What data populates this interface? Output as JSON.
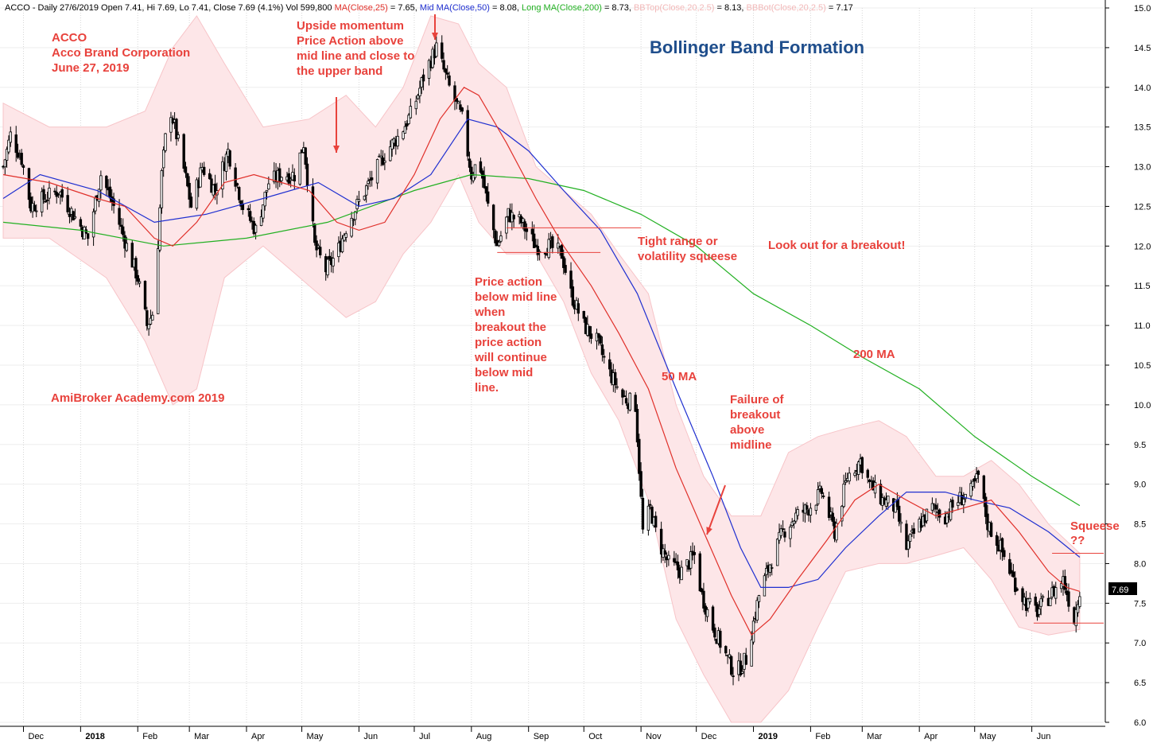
{
  "header": {
    "parts": [
      {
        "text": "ACCO - Daily 27/6/2019 Open 7.41, Hi 7.69, Lo 7.41, Close 7.69 (4.1%) Vol 599,800 ",
        "color": "#000000"
      },
      {
        "text": "MA(Close,25)",
        "color": "#e0302a"
      },
      {
        "text": " = 7.65, ",
        "color": "#000000"
      },
      {
        "text": "Mid MA(Close,50)",
        "color": "#1f2fd0"
      },
      {
        "text": " = 8.08, ",
        "color": "#000000"
      },
      {
        "text": "Long MA(Close,200)",
        "color": "#22b022"
      },
      {
        "text": " = 8.73, ",
        "color": "#000000"
      },
      {
        "text": "BBTop(Close,20,2.5)",
        "color": "#f2b8b8"
      },
      {
        "text": " = 8.13, ",
        "color": "#000000"
      },
      {
        "text": "BBBot(Close,20,2.5)",
        "color": "#f2b8b8"
      },
      {
        "text": " = 7.17",
        "color": "#000000"
      }
    ]
  },
  "title": "Bollinger Band Formation",
  "colors": {
    "ma25": "#e0302a",
    "ma50": "#1f2fd0",
    "ma200": "#22b022",
    "band_fill": "#fde6e8",
    "band_edge": "#f7c4c8",
    "annotation": "#e8423c",
    "title": "#1f4e8c",
    "candle": "#000000"
  },
  "annotations": {
    "acco": [
      "ACCO",
      "Acco Brand Corporation",
      "June 27, 2019"
    ],
    "momentum": [
      "Upside momentum",
      "Price Action above",
      "mid line and close to",
      "the upper band"
    ],
    "tight": [
      "Tight range or",
      "volatility squeese"
    ],
    "breakout": [
      "Look out for a breakout!"
    ],
    "below": [
      "Price action",
      "below mid line",
      "when",
      "breakout the",
      "price action",
      "will continue",
      "below mid",
      "line."
    ],
    "ma50": [
      "50 MA"
    ],
    "ma200": [
      "200 MA"
    ],
    "failure": [
      "Failure of",
      "breakout",
      "above",
      "midline"
    ],
    "squeese": [
      "Squeese",
      "??"
    ],
    "academy": [
      "AmiBroker Academy.com  2019"
    ]
  },
  "price_tag": "7.69",
  "chart_data": {
    "type": "candlestick",
    "period": "Daily",
    "y_axis": {
      "min": 6.0,
      "max": 15.0,
      "step": 0.5,
      "side": "right",
      "ticks": [
        "6.0",
        "6.5",
        "7.0",
        "7.5",
        "8.0",
        "8.5",
        "9.0",
        "9.5",
        "10.0",
        "10.5",
        "11.0",
        "11.5",
        "12.0",
        "12.5",
        "13.0",
        "13.5",
        "14.0",
        "14.5",
        "15.0"
      ]
    },
    "x_axis": {
      "labels": [
        {
          "label": "Dec",
          "date": "2017-12-01",
          "bold": false
        },
        {
          "label": "2018",
          "date": "2018-01-01",
          "bold": true
        },
        {
          "label": "Feb",
          "date": "2018-02-01",
          "bold": false
        },
        {
          "label": "Mar",
          "date": "2018-03-01",
          "bold": false
        },
        {
          "label": "Apr",
          "date": "2018-04-01",
          "bold": false
        },
        {
          "label": "May",
          "date": "2018-05-01",
          "bold": false
        },
        {
          "label": "Jun",
          "date": "2018-06-01",
          "bold": false
        },
        {
          "label": "Jul",
          "date": "2018-07-01",
          "bold": false
        },
        {
          "label": "Aug",
          "date": "2018-08-01",
          "bold": false
        },
        {
          "label": "Sep",
          "date": "2018-09-01",
          "bold": false
        },
        {
          "label": "Oct",
          "date": "2018-10-01",
          "bold": false
        },
        {
          "label": "Nov",
          "date": "2018-11-01",
          "bold": false
        },
        {
          "label": "Dec",
          "date": "2018-12-01",
          "bold": false
        },
        {
          "label": "2019",
          "date": "2019-01-01",
          "bold": true
        },
        {
          "label": "Feb",
          "date": "2019-02-01",
          "bold": false
        },
        {
          "label": "Mar",
          "date": "2019-03-01",
          "bold": false
        },
        {
          "label": "Apr",
          "date": "2019-04-01",
          "bold": false
        },
        {
          "label": "May",
          "date": "2019-05-01",
          "bold": false
        },
        {
          "label": "Jun",
          "date": "2019-06-01",
          "bold": false
        }
      ]
    },
    "close_path": [
      [
        "2017-11-20",
        13.0
      ],
      [
        "2017-11-24",
        13.4
      ],
      [
        "2017-11-30",
        13.1
      ],
      [
        "2017-12-05",
        12.5
      ],
      [
        "2017-12-12",
        12.6
      ],
      [
        "2017-12-20",
        12.7
      ],
      [
        "2017-12-28",
        12.4
      ],
      [
        "2018-01-05",
        12.1
      ],
      [
        "2018-01-12",
        12.9
      ],
      [
        "2018-01-19",
        12.5
      ],
      [
        "2018-01-26",
        12.0
      ],
      [
        "2018-02-01",
        11.6
      ],
      [
        "2018-02-06",
        11.0
      ],
      [
        "2018-02-10",
        11.2
      ],
      [
        "2018-02-14",
        12.9
      ],
      [
        "2018-02-18",
        13.8
      ],
      [
        "2018-02-24",
        13.2
      ],
      [
        "2018-03-02",
        12.5
      ],
      [
        "2018-03-08",
        13.0
      ],
      [
        "2018-03-15",
        12.7
      ],
      [
        "2018-03-22",
        13.2
      ],
      [
        "2018-03-30",
        12.5
      ],
      [
        "2018-04-06",
        12.2
      ],
      [
        "2018-04-13",
        12.8
      ],
      [
        "2018-04-20",
        12.9
      ],
      [
        "2018-04-27",
        12.9
      ],
      [
        "2018-05-02",
        13.3
      ],
      [
        "2018-05-08",
        12.0
      ],
      [
        "2018-05-14",
        11.7
      ],
      [
        "2018-05-20",
        11.9
      ],
      [
        "2018-05-26",
        12.3
      ],
      [
        "2018-06-02",
        12.6
      ],
      [
        "2018-06-09",
        12.9
      ],
      [
        "2018-06-16",
        13.2
      ],
      [
        "2018-06-23",
        13.4
      ],
      [
        "2018-06-30",
        13.7
      ],
      [
        "2018-07-07",
        14.2
      ],
      [
        "2018-07-13",
        14.5
      ],
      [
        "2018-07-20",
        14.0
      ],
      [
        "2018-07-27",
        13.6
      ],
      [
        "2018-08-01",
        12.9
      ],
      [
        "2018-08-05",
        13.1
      ],
      [
        "2018-08-10",
        12.5
      ],
      [
        "2018-08-15",
        12.0
      ],
      [
        "2018-08-21",
        12.4
      ],
      [
        "2018-08-28",
        12.3
      ],
      [
        "2018-09-05",
        12.0
      ],
      [
        "2018-09-12",
        12.0
      ],
      [
        "2018-09-19",
        11.9
      ],
      [
        "2018-09-24",
        11.4
      ],
      [
        "2018-10-01",
        11.0
      ],
      [
        "2018-10-08",
        10.8
      ],
      [
        "2018-10-15",
        10.4
      ],
      [
        "2018-10-22",
        10.1
      ],
      [
        "2018-10-29",
        10.0
      ],
      [
        "2018-11-02",
        8.4
      ],
      [
        "2018-11-06",
        8.7
      ],
      [
        "2018-11-10",
        8.3
      ],
      [
        "2018-11-16",
        8.0
      ],
      [
        "2018-11-23",
        7.9
      ],
      [
        "2018-11-30",
        8.1
      ],
      [
        "2018-12-04",
        7.6
      ],
      [
        "2018-12-10",
        7.2
      ],
      [
        "2018-12-16",
        6.9
      ],
      [
        "2018-12-22",
        6.6
      ],
      [
        "2018-12-28",
        6.8
      ],
      [
        "2019-01-04",
        7.6
      ],
      [
        "2019-01-10",
        8.0
      ],
      [
        "2019-01-17",
        8.4
      ],
      [
        "2019-01-24",
        8.6
      ],
      [
        "2019-01-31",
        8.7
      ],
      [
        "2019-02-07",
        8.9
      ],
      [
        "2019-02-14",
        8.4
      ],
      [
        "2019-02-21",
        9.1
      ],
      [
        "2019-02-28",
        9.3
      ],
      [
        "2019-03-05",
        9.0
      ],
      [
        "2019-03-12",
        8.8
      ],
      [
        "2019-03-19",
        8.7
      ],
      [
        "2019-03-25",
        8.2
      ],
      [
        "2019-04-01",
        8.5
      ],
      [
        "2019-04-08",
        8.7
      ],
      [
        "2019-04-15",
        8.6
      ],
      [
        "2019-04-22",
        8.8
      ],
      [
        "2019-04-29",
        8.9
      ],
      [
        "2019-05-03",
        9.1
      ],
      [
        "2019-05-08",
        8.5
      ],
      [
        "2019-05-15",
        8.2
      ],
      [
        "2019-05-22",
        7.8
      ],
      [
        "2019-05-29",
        7.5
      ],
      [
        "2019-06-04",
        7.4
      ],
      [
        "2019-06-11",
        7.6
      ],
      [
        "2019-06-18",
        7.8
      ],
      [
        "2019-06-24",
        7.3
      ],
      [
        "2019-06-27",
        7.69
      ]
    ],
    "ma25": [
      [
        "2017-11-20",
        12.9
      ],
      [
        "2017-12-15",
        12.8
      ],
      [
        "2018-01-10",
        12.6
      ],
      [
        "2018-01-25",
        12.5
      ],
      [
        "2018-02-10",
        12.1
      ],
      [
        "2018-02-20",
        12.0
      ],
      [
        "2018-03-05",
        12.3
      ],
      [
        "2018-03-20",
        12.8
      ],
      [
        "2018-04-05",
        12.9
      ],
      [
        "2018-04-20",
        12.8
      ],
      [
        "2018-05-05",
        12.7
      ],
      [
        "2018-05-20",
        12.3
      ],
      [
        "2018-06-01",
        12.2
      ],
      [
        "2018-06-15",
        12.3
      ],
      [
        "2018-07-01",
        12.9
      ],
      [
        "2018-07-15",
        13.6
      ],
      [
        "2018-07-28",
        14.0
      ],
      [
        "2018-08-05",
        13.9
      ],
      [
        "2018-08-20",
        13.3
      ],
      [
        "2018-09-05",
        12.6
      ],
      [
        "2018-09-20",
        12.0
      ],
      [
        "2018-10-05",
        11.5
      ],
      [
        "2018-10-20",
        10.9
      ],
      [
        "2018-11-05",
        10.2
      ],
      [
        "2018-11-20",
        9.2
      ],
      [
        "2018-12-05",
        8.4
      ],
      [
        "2018-12-20",
        7.6
      ],
      [
        "2018-12-31",
        7.1
      ],
      [
        "2019-01-10",
        7.3
      ],
      [
        "2019-01-25",
        7.8
      ],
      [
        "2019-02-10",
        8.3
      ],
      [
        "2019-02-25",
        8.8
      ],
      [
        "2019-03-10",
        9.0
      ],
      [
        "2019-03-25",
        8.8
      ],
      [
        "2019-04-10",
        8.6
      ],
      [
        "2019-04-25",
        8.7
      ],
      [
        "2019-05-10",
        8.8
      ],
      [
        "2019-05-25",
        8.4
      ],
      [
        "2019-06-10",
        7.9
      ],
      [
        "2019-06-20",
        7.7
      ],
      [
        "2019-06-27",
        7.65
      ]
    ],
    "ma50": [
      [
        "2017-11-20",
        12.6
      ],
      [
        "2017-12-10",
        12.9
      ],
      [
        "2018-01-10",
        12.7
      ],
      [
        "2018-02-10",
        12.3
      ],
      [
        "2018-03-10",
        12.4
      ],
      [
        "2018-04-10",
        12.6
      ],
      [
        "2018-05-10",
        12.8
      ],
      [
        "2018-06-01",
        12.5
      ],
      [
        "2018-06-20",
        12.6
      ],
      [
        "2018-07-10",
        12.9
      ],
      [
        "2018-07-30",
        13.6
      ],
      [
        "2018-08-15",
        13.5
      ],
      [
        "2018-09-01",
        13.2
      ],
      [
        "2018-09-20",
        12.7
      ],
      [
        "2018-10-10",
        12.2
      ],
      [
        "2018-10-30",
        11.4
      ],
      [
        "2018-11-20",
        10.2
      ],
      [
        "2018-12-10",
        9.1
      ],
      [
        "2018-12-25",
        8.2
      ],
      [
        "2019-01-05",
        7.7
      ],
      [
        "2019-01-20",
        7.7
      ],
      [
        "2019-02-05",
        7.8
      ],
      [
        "2019-02-20",
        8.2
      ],
      [
        "2019-03-10",
        8.6
      ],
      [
        "2019-03-25",
        8.9
      ],
      [
        "2019-04-15",
        8.9
      ],
      [
        "2019-05-01",
        8.8
      ],
      [
        "2019-05-20",
        8.7
      ],
      [
        "2019-06-10",
        8.4
      ],
      [
        "2019-06-27",
        8.08
      ]
    ],
    "ma200": [
      [
        "2017-11-20",
        12.3
      ],
      [
        "2018-01-01",
        12.2
      ],
      [
        "2018-02-15",
        12.0
      ],
      [
        "2018-04-01",
        12.1
      ],
      [
        "2018-05-15",
        12.3
      ],
      [
        "2018-07-01",
        12.7
      ],
      [
        "2018-08-01",
        12.9
      ],
      [
        "2018-09-01",
        12.85
      ],
      [
        "2018-10-01",
        12.7
      ],
      [
        "2018-11-01",
        12.4
      ],
      [
        "2018-12-01",
        12.0
      ],
      [
        "2019-01-01",
        11.4
      ],
      [
        "2019-02-01",
        11.0
      ],
      [
        "2019-03-01",
        10.6
      ],
      [
        "2019-04-01",
        10.2
      ],
      [
        "2019-05-01",
        9.6
      ],
      [
        "2019-06-01",
        9.1
      ],
      [
        "2019-06-27",
        8.73
      ]
    ],
    "bb_top": [
      [
        "2017-11-20",
        13.8
      ],
      [
        "2017-12-15",
        13.5
      ],
      [
        "2018-01-15",
        13.5
      ],
      [
        "2018-02-05",
        13.7
      ],
      [
        "2018-02-20",
        14.5
      ],
      [
        "2018-03-05",
        14.9
      ],
      [
        "2018-03-20",
        14.3
      ],
      [
        "2018-04-10",
        13.5
      ],
      [
        "2018-05-05",
        13.6
      ],
      [
        "2018-05-25",
        13.9
      ],
      [
        "2018-06-10",
        13.5
      ],
      [
        "2018-06-25",
        14.0
      ],
      [
        "2018-07-10",
        14.9
      ],
      [
        "2018-07-25",
        14.8
      ],
      [
        "2018-08-05",
        14.3
      ],
      [
        "2018-08-20",
        14.0
      ],
      [
        "2018-09-05",
        13.0
      ],
      [
        "2018-09-20",
        12.7
      ],
      [
        "2018-10-05",
        12.4
      ],
      [
        "2018-10-20",
        11.9
      ],
      [
        "2018-11-05",
        11.4
      ],
      [
        "2018-11-20",
        10.0
      ],
      [
        "2018-12-05",
        9.1
      ],
      [
        "2018-12-20",
        8.6
      ],
      [
        "2019-01-05",
        8.6
      ],
      [
        "2019-01-20",
        9.4
      ],
      [
        "2019-02-05",
        9.6
      ],
      [
        "2019-02-20",
        9.7
      ],
      [
        "2019-03-10",
        9.8
      ],
      [
        "2019-03-25",
        9.6
      ],
      [
        "2019-04-10",
        9.1
      ],
      [
        "2019-04-25",
        9.1
      ],
      [
        "2019-05-10",
        9.3
      ],
      [
        "2019-05-25",
        9.0
      ],
      [
        "2019-06-10",
        8.5
      ],
      [
        "2019-06-27",
        8.13
      ]
    ],
    "bb_bot": [
      [
        "2017-11-20",
        12.1
      ],
      [
        "2017-12-15",
        12.1
      ],
      [
        "2018-01-15",
        11.6
      ],
      [
        "2018-02-05",
        10.8
      ],
      [
        "2018-02-20",
        10.0
      ],
      [
        "2018-03-05",
        10.2
      ],
      [
        "2018-03-20",
        11.6
      ],
      [
        "2018-04-10",
        12.0
      ],
      [
        "2018-05-05",
        11.5
      ],
      [
        "2018-05-25",
        11.1
      ],
      [
        "2018-06-10",
        11.3
      ],
      [
        "2018-06-25",
        11.9
      ],
      [
        "2018-07-10",
        12.3
      ],
      [
        "2018-07-25",
        12.9
      ],
      [
        "2018-08-05",
        12.3
      ],
      [
        "2018-08-20",
        11.9
      ],
      [
        "2018-09-05",
        11.9
      ],
      [
        "2018-09-20",
        11.3
      ],
      [
        "2018-10-05",
        10.4
      ],
      [
        "2018-10-20",
        9.8
      ],
      [
        "2018-11-05",
        8.8
      ],
      [
        "2018-11-20",
        7.3
      ],
      [
        "2018-12-05",
        6.6
      ],
      [
        "2018-12-20",
        6.0
      ],
      [
        "2019-01-05",
        6.0
      ],
      [
        "2019-01-20",
        6.4
      ],
      [
        "2019-02-05",
        7.2
      ],
      [
        "2019-02-20",
        7.9
      ],
      [
        "2019-03-10",
        8.0
      ],
      [
        "2019-03-25",
        8.0
      ],
      [
        "2019-04-10",
        8.1
      ],
      [
        "2019-04-25",
        8.2
      ],
      [
        "2019-05-10",
        7.8
      ],
      [
        "2019-05-25",
        7.2
      ],
      [
        "2019-06-10",
        7.1
      ],
      [
        "2019-06-27",
        7.17
      ]
    ],
    "range_lines": [
      {
        "from": "2018-08-20",
        "to": "2018-11-01",
        "y": 12.23
      },
      {
        "from": "2018-08-15",
        "to": "2018-10-10",
        "y": 11.92
      },
      {
        "from": "2019-06-12",
        "to": "2019-07-10",
        "y": 8.13
      },
      {
        "from": "2019-06-02",
        "to": "2019-07-10",
        "y": 7.25
      }
    ],
    "last_close": 7.69
  }
}
